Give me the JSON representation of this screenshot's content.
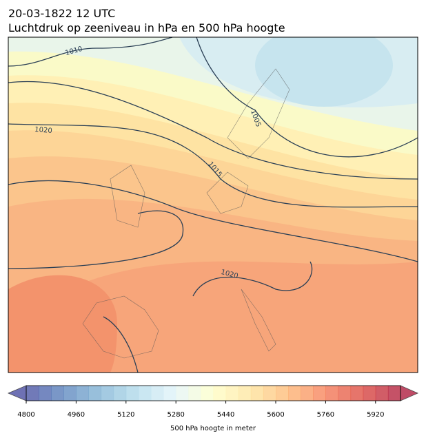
{
  "header": {
    "date": "20-03-1822 12 UTC",
    "title": "Luchtdruk op zeeniveau in hPa en 500 hPa hoogte"
  },
  "map": {
    "contour_labels": [
      1010,
      1020,
      1005,
      1015,
      1020
    ]
  },
  "colorbar": {
    "lim": [
      4800,
      6000
    ],
    "step": 40,
    "ticks": [
      4800,
      4960,
      5120,
      5280,
      5440,
      5600,
      5760,
      5920
    ],
    "label": "500 hPa hoogte in meter"
  }
}
